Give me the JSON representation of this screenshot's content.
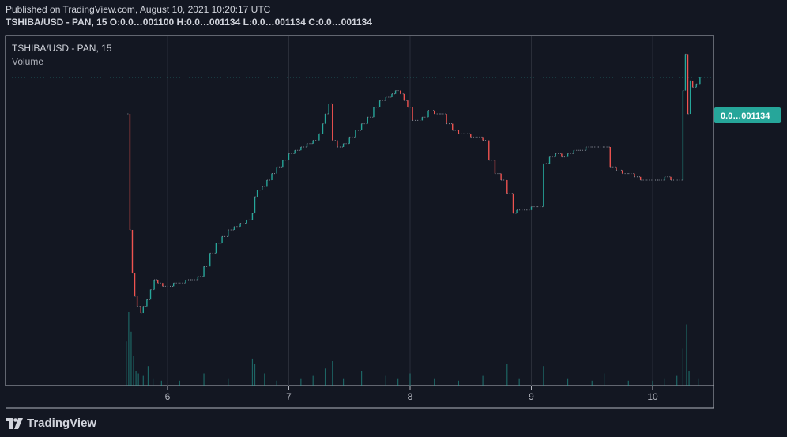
{
  "header": {
    "published": "Published on TradingView.com, August 10, 2021 10:20:17 UTC",
    "ohlc": "TSHIBA/USD - PAN, 15 O:0.0…001100 H:0.0…001134 L:0.0…001134 C:0.0…001134"
  },
  "legend": {
    "symbol": "TSHIBA/USD - PAN, 15",
    "volume": "Volume"
  },
  "price_label": "0.0…001134",
  "footer": {
    "brand": "TradingView"
  },
  "colors": {
    "background": "#131722",
    "up": "#26a69a",
    "down": "#ef5350",
    "grid": "#2a2e39",
    "axis": "#b2b5be",
    "price_tag": "#26a69a",
    "volume": "#26a69a"
  },
  "chart_data": {
    "type": "candlestick",
    "x_ticks": [
      "6",
      "7",
      "8",
      "9",
      "10"
    ],
    "y_range_relative": [
      0,
      1
    ],
    "series": [
      {
        "name": "TSHIBA/USD - PAN, 15",
        "kind": "price_steps",
        "points": [
          [
            5.67,
            0.8
          ],
          [
            5.69,
            0.45
          ],
          [
            5.71,
            0.32
          ],
          [
            5.73,
            0.25
          ],
          [
            5.75,
            0.22
          ],
          [
            5.78,
            0.2
          ],
          [
            5.8,
            0.22
          ],
          [
            5.83,
            0.24
          ],
          [
            5.86,
            0.27
          ],
          [
            5.89,
            0.3
          ],
          [
            5.92,
            0.29
          ],
          [
            5.96,
            0.28
          ],
          [
            6.0,
            0.28
          ],
          [
            6.05,
            0.29
          ],
          [
            6.1,
            0.29
          ],
          [
            6.15,
            0.3
          ],
          [
            6.2,
            0.3
          ],
          [
            6.25,
            0.31
          ],
          [
            6.3,
            0.34
          ],
          [
            6.35,
            0.38
          ],
          [
            6.4,
            0.41
          ],
          [
            6.45,
            0.43
          ],
          [
            6.5,
            0.45
          ],
          [
            6.55,
            0.46
          ],
          [
            6.6,
            0.47
          ],
          [
            6.65,
            0.48
          ],
          [
            6.7,
            0.5
          ],
          [
            6.72,
            0.55
          ],
          [
            6.74,
            0.57
          ],
          [
            6.78,
            0.58
          ],
          [
            6.82,
            0.6
          ],
          [
            6.86,
            0.62
          ],
          [
            6.9,
            0.64
          ],
          [
            6.95,
            0.66
          ],
          [
            7.0,
            0.68
          ],
          [
            7.05,
            0.69
          ],
          [
            7.1,
            0.7
          ],
          [
            7.15,
            0.71
          ],
          [
            7.2,
            0.72
          ],
          [
            7.25,
            0.74
          ],
          [
            7.28,
            0.77
          ],
          [
            7.3,
            0.8
          ],
          [
            7.33,
            0.83
          ],
          [
            7.36,
            0.72
          ],
          [
            7.4,
            0.7
          ],
          [
            7.45,
            0.71
          ],
          [
            7.5,
            0.73
          ],
          [
            7.55,
            0.75
          ],
          [
            7.6,
            0.77
          ],
          [
            7.65,
            0.79
          ],
          [
            7.7,
            0.82
          ],
          [
            7.75,
            0.84
          ],
          [
            7.8,
            0.85
          ],
          [
            7.85,
            0.86
          ],
          [
            7.88,
            0.87
          ],
          [
            7.92,
            0.86
          ],
          [
            7.95,
            0.84
          ],
          [
            7.98,
            0.82
          ],
          [
            8.02,
            0.78
          ],
          [
            8.06,
            0.78
          ],
          [
            8.1,
            0.79
          ],
          [
            8.15,
            0.81
          ],
          [
            8.2,
            0.8
          ],
          [
            8.25,
            0.8
          ],
          [
            8.3,
            0.77
          ],
          [
            8.35,
            0.75
          ],
          [
            8.4,
            0.74
          ],
          [
            8.45,
            0.74
          ],
          [
            8.5,
            0.73
          ],
          [
            8.55,
            0.73
          ],
          [
            8.6,
            0.72
          ],
          [
            8.65,
            0.66
          ],
          [
            8.7,
            0.62
          ],
          [
            8.75,
            0.6
          ],
          [
            8.8,
            0.56
          ],
          [
            8.85,
            0.5
          ],
          [
            8.88,
            0.51
          ],
          [
            8.92,
            0.51
          ],
          [
            8.96,
            0.51
          ],
          [
            9.0,
            0.52
          ],
          [
            9.05,
            0.52
          ],
          [
            9.1,
            0.65
          ],
          [
            9.15,
            0.67
          ],
          [
            9.2,
            0.68
          ],
          [
            9.25,
            0.67
          ],
          [
            9.3,
            0.68
          ],
          [
            9.35,
            0.69
          ],
          [
            9.4,
            0.69
          ],
          [
            9.45,
            0.7
          ],
          [
            9.5,
            0.7
          ],
          [
            9.55,
            0.7
          ],
          [
            9.6,
            0.7
          ],
          [
            9.65,
            0.64
          ],
          [
            9.7,
            0.63
          ],
          [
            9.75,
            0.62
          ],
          [
            9.8,
            0.62
          ],
          [
            9.85,
            0.61
          ],
          [
            9.9,
            0.6
          ],
          [
            9.95,
            0.6
          ],
          [
            10.0,
            0.6
          ],
          [
            10.05,
            0.6
          ],
          [
            10.1,
            0.61
          ],
          [
            10.15,
            0.6
          ],
          [
            10.2,
            0.6
          ],
          [
            10.25,
            0.87
          ],
          [
            10.27,
            0.98
          ],
          [
            10.29,
            0.8
          ],
          [
            10.31,
            0.9
          ],
          [
            10.33,
            0.88
          ],
          [
            10.36,
            0.89
          ],
          [
            10.39,
            0.91
          ]
        ]
      },
      {
        "name": "Volume",
        "kind": "volume",
        "bars": [
          [
            5.66,
            0.18
          ],
          [
            5.68,
            0.3
          ],
          [
            5.7,
            0.22
          ],
          [
            5.72,
            0.12
          ],
          [
            5.74,
            0.06
          ],
          [
            5.76,
            0.05
          ],
          [
            5.8,
            0.04
          ],
          [
            5.84,
            0.08
          ],
          [
            5.88,
            0.03
          ],
          [
            5.95,
            0.02
          ],
          [
            6.1,
            0.02
          ],
          [
            6.3,
            0.05
          ],
          [
            6.5,
            0.03
          ],
          [
            6.7,
            0.11
          ],
          [
            6.72,
            0.09
          ],
          [
            6.8,
            0.05
          ],
          [
            6.9,
            0.02
          ],
          [
            7.1,
            0.03
          ],
          [
            7.2,
            0.04
          ],
          [
            7.3,
            0.07
          ],
          [
            7.36,
            0.1
          ],
          [
            7.45,
            0.03
          ],
          [
            7.6,
            0.06
          ],
          [
            7.8,
            0.04
          ],
          [
            7.9,
            0.03
          ],
          [
            8.0,
            0.05
          ],
          [
            8.2,
            0.03
          ],
          [
            8.4,
            0.02
          ],
          [
            8.6,
            0.04
          ],
          [
            8.8,
            0.09
          ],
          [
            8.9,
            0.03
          ],
          [
            9.1,
            0.08
          ],
          [
            9.3,
            0.03
          ],
          [
            9.5,
            0.02
          ],
          [
            9.6,
            0.05
          ],
          [
            9.8,
            0.02
          ],
          [
            10.0,
            0.02
          ],
          [
            10.1,
            0.03
          ],
          [
            10.2,
            0.04
          ],
          [
            10.25,
            0.15
          ],
          [
            10.28,
            0.25
          ],
          [
            10.3,
            0.06
          ],
          [
            10.38,
            0.03
          ]
        ]
      }
    ],
    "last_value_label": "0.0…001134",
    "ylabel": "",
    "xlabel": "",
    "grid": true
  }
}
